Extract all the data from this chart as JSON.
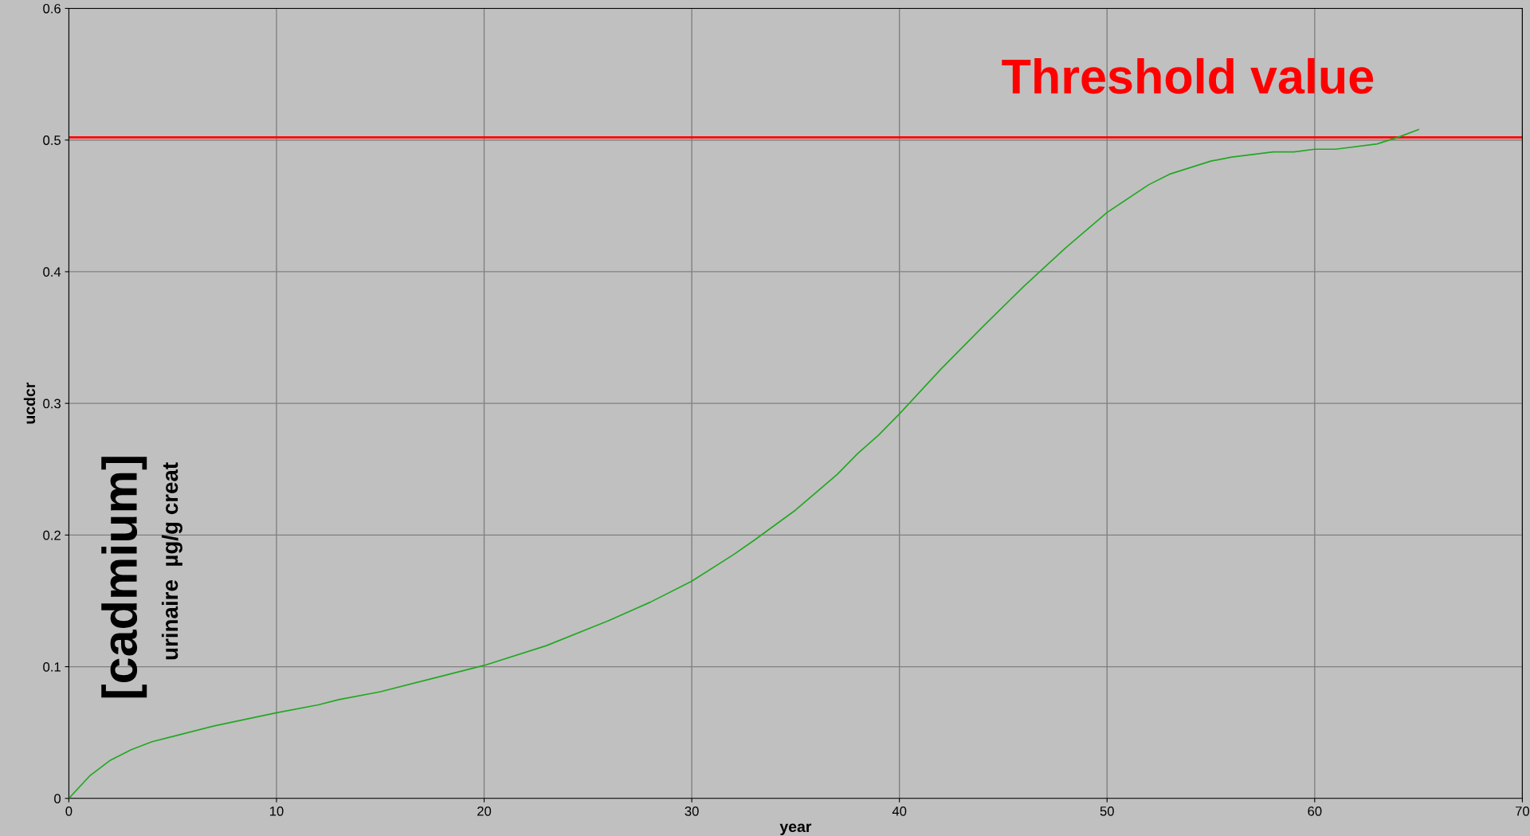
{
  "chart_data": {
    "type": "line",
    "xlabel": "year",
    "ylabel": "ucdcr",
    "x": [
      0,
      1,
      2,
      3,
      4,
      5,
      7,
      10,
      12,
      13,
      15,
      18,
      20,
      23,
      26,
      28,
      30,
      32,
      33,
      35,
      37,
      38,
      39,
      40,
      42,
      44,
      46,
      48,
      50,
      52,
      53,
      55,
      56,
      58,
      59,
      60,
      61,
      63,
      64,
      65
    ],
    "series": [
      {
        "color": "#22a822",
        "values": [
          0,
          0.017,
          0.029,
          0.037,
          0.043,
          0.047,
          0.055,
          0.065,
          0.071,
          0.075,
          0.081,
          0.093,
          0.101,
          0.116,
          0.135,
          0.149,
          0.165,
          0.185,
          0.196,
          0.219,
          0.246,
          0.262,
          0.276,
          0.292,
          0.326,
          0.358,
          0.389,
          0.418,
          0.445,
          0.466,
          0.474,
          0.484,
          0.487,
          0.491,
          0.491,
          0.493,
          0.493,
          0.497,
          0.502,
          0.508
        ]
      }
    ],
    "ref_lines": [
      {
        "axis": "y",
        "value": 0.502,
        "label": "Threshold value",
        "color": "#ff0000"
      }
    ],
    "annotations": [
      "[cadmium]",
      "urinaire  µg/g creat"
    ],
    "xlim": [
      0,
      70
    ],
    "ylim": [
      0,
      0.6
    ],
    "xticks": [
      0,
      10,
      20,
      30,
      40,
      50,
      60,
      70
    ],
    "yticks": [
      0,
      0.1,
      0.2,
      0.3,
      0.4,
      0.5,
      0.6
    ],
    "grid": true,
    "legend": false,
    "marker": "none",
    "line_style": "solid"
  }
}
